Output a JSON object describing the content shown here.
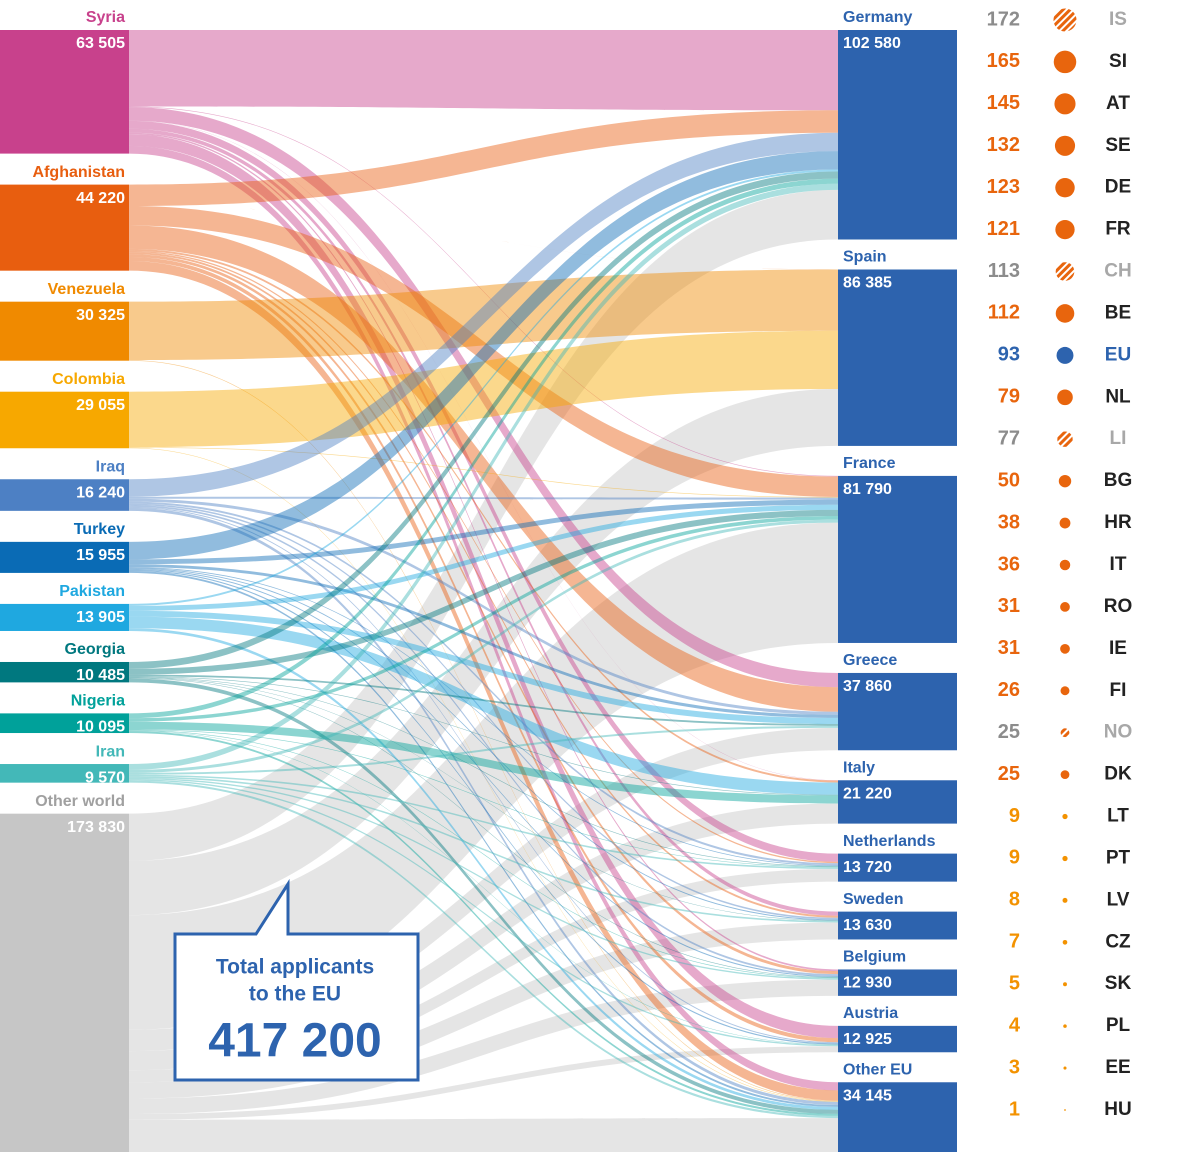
{
  "chart_data": {
    "type": "sankey",
    "sources": {
      "names": [
        "Syria",
        "Afghanistan",
        "Venezuela",
        "Colombia",
        "Iraq",
        "Turkey",
        "Pakistan",
        "Georgia",
        "Nigeria",
        "Iran",
        "Other world"
      ],
      "values": [
        63505,
        44220,
        30325,
        29055,
        16240,
        15955,
        13905,
        10485,
        10095,
        9570,
        173830
      ],
      "value_labels": [
        "63 505",
        "44 220",
        "30 325",
        "29 055",
        "16 240",
        "15 955",
        "13 905",
        "10 485",
        "10 095",
        "9 570",
        "173 830"
      ],
      "colors": [
        "#c8418c",
        "#e85e0f",
        "#f08a00",
        "#f7a800",
        "#4d80c4",
        "#0a6bb5",
        "#1fa8e0",
        "#00787f",
        "#00a19a",
        "#43b8b8",
        "#c6c6c6"
      ],
      "flows": [
        [
          39305,
          0,
          300,
          7000,
          100,
          4000,
          2000,
          800,
          6000,
          4000
        ],
        [
          11000,
          20,
          10000,
          12000,
          1000,
          700,
          1000,
          1500,
          2000,
          5000
        ],
        [
          0,
          30000,
          0,
          0,
          0,
          0,
          0,
          0,
          0,
          325
        ],
        [
          0,
          28500,
          300,
          0,
          0,
          0,
          0,
          0,
          0,
          255
        ],
        [
          9000,
          0,
          1000,
          1500,
          0,
          1000,
          800,
          900,
          500,
          1540
        ],
        [
          9000,
          0,
          2500,
          1500,
          0,
          400,
          500,
          500,
          600,
          955
        ],
        [
          1000,
          0,
          2500,
          3000,
          6000,
          0,
          0,
          0,
          0,
          1405
        ],
        [
          3500,
          0,
          3000,
          900,
          300,
          300,
          200,
          285,
          0,
          2000
        ],
        [
          2500,
          0,
          1800,
          0,
          4000,
          300,
          0,
          300,
          195,
          1000
        ],
        [
          3000,
          0,
          1500,
          1000,
          0,
          800,
          800,
          700,
          700,
          1070
        ],
        [
          24275,
          27865,
          58890,
          10960,
          9820,
          6220,
          8330,
          7945,
          2930,
          16595
        ]
      ]
    },
    "targets": {
      "names": [
        "Germany",
        "Spain",
        "France",
        "Greece",
        "Italy",
        "Netherlands",
        "Sweden",
        "Belgium",
        "Austria",
        "Other EU"
      ],
      "values": [
        102580,
        86385,
        81790,
        37860,
        21220,
        13720,
        13630,
        12930,
        12925,
        34145
      ],
      "value_labels": [
        "102 580",
        "86 385",
        "81 790",
        "37 860",
        "21 220",
        "13 720",
        "13 630",
        "12 930",
        "12 925",
        "34 145"
      ],
      "color": "#2d63ae"
    },
    "annotation": {
      "lines": [
        "Total applicants",
        "to the EU"
      ],
      "total": {
        "value": 417200,
        "label": "417 200"
      }
    },
    "ranking": [
      {
        "value": 172,
        "code": "IS",
        "color": "#8c8c8c",
        "hatched": true
      },
      {
        "value": 165,
        "code": "SI",
        "color": "#e8650d"
      },
      {
        "value": 145,
        "code": "AT",
        "color": "#e8650d"
      },
      {
        "value": 132,
        "code": "SE",
        "color": "#e8650d"
      },
      {
        "value": 123,
        "code": "DE",
        "color": "#e8650d"
      },
      {
        "value": 121,
        "code": "FR",
        "color": "#e8650d"
      },
      {
        "value": 113,
        "code": "CH",
        "color": "#8c8c8c",
        "hatched": true
      },
      {
        "value": 112,
        "code": "BE",
        "color": "#e8650d"
      },
      {
        "value": 93,
        "code": "EU",
        "color": "#2d63ae",
        "highlight": true
      },
      {
        "value": 79,
        "code": "NL",
        "color": "#e8650d"
      },
      {
        "value": 77,
        "code": "LI",
        "color": "#8c8c8c",
        "hatched": true
      },
      {
        "value": 50,
        "code": "BG",
        "color": "#e8650d"
      },
      {
        "value": 38,
        "code": "HR",
        "color": "#e8650d"
      },
      {
        "value": 36,
        "code": "IT",
        "color": "#e8650d"
      },
      {
        "value": 31,
        "code": "RO",
        "color": "#e8650d"
      },
      {
        "value": 31,
        "code": "IE",
        "color": "#e8650d"
      },
      {
        "value": 26,
        "code": "FI",
        "color": "#e8650d"
      },
      {
        "value": 25,
        "code": "NO",
        "color": "#8c8c8c",
        "hatched": true
      },
      {
        "value": 25,
        "code": "DK",
        "color": "#e8650d"
      },
      {
        "value": 9,
        "code": "LT",
        "color": "#f39200"
      },
      {
        "value": 9,
        "code": "PT",
        "color": "#f39200"
      },
      {
        "value": 8,
        "code": "LV",
        "color": "#f39200"
      },
      {
        "value": 7,
        "code": "CZ",
        "color": "#f39200"
      },
      {
        "value": 5,
        "code": "SK",
        "color": "#f39200"
      },
      {
        "value": 4,
        "code": "PL",
        "color": "#f39200"
      },
      {
        "value": 3,
        "code": "EE",
        "color": "#f39200"
      },
      {
        "value": 1,
        "code": "HU",
        "color": "#f39200"
      }
    ]
  }
}
